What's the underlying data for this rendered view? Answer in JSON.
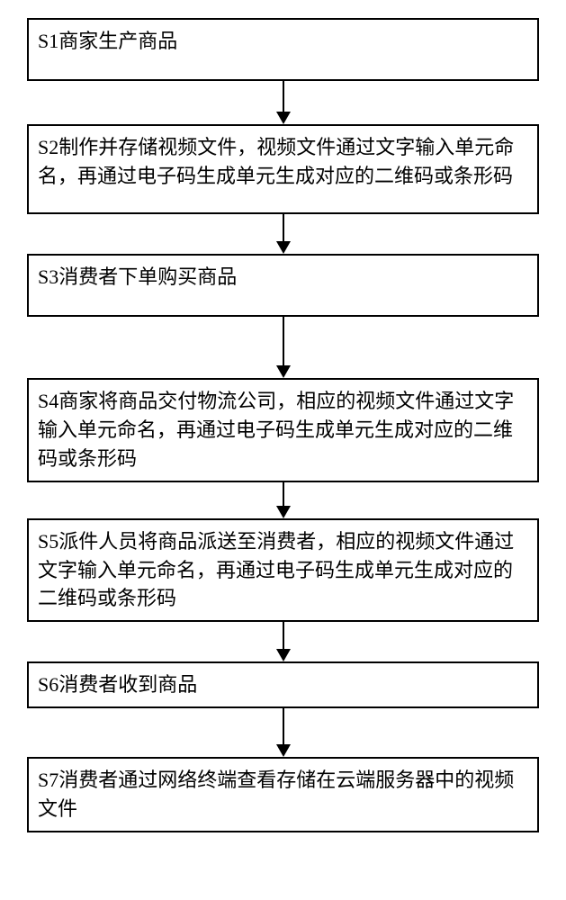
{
  "flowchart": {
    "type": "flowchart",
    "direction": "vertical",
    "box_border_color": "#000000",
    "box_border_width": 2,
    "box_background": "#ffffff",
    "text_color": "#000000",
    "font_size_pt": 16,
    "arrow_color": "#000000",
    "arrow_shaft_width": 2,
    "arrow_head_width": 16,
    "arrow_head_height": 14,
    "nodes": [
      {
        "id": "s1",
        "label": "S1商家生产商品",
        "min_height": 70,
        "arrow_shaft_len": 34
      },
      {
        "id": "s2",
        "label": "S2制作并存储视频文件，视频文件通过文字输入单元命名，再通过电子码生成单元生成对应的二维码或条形码",
        "min_height": 100,
        "arrow_shaft_len": 30
      },
      {
        "id": "s3",
        "label": "S3消费者下单购买商品",
        "min_height": 70,
        "arrow_shaft_len": 54
      },
      {
        "id": "s4",
        "label": "S4商家将商品交付物流公司，相应的视频文件通过文字输入单元命名，再通过电子码生成单元生成对应的二维码或条形码",
        "min_height": 100,
        "arrow_shaft_len": 26
      },
      {
        "id": "s5",
        "label": "S5派件人员将商品派送至消费者，相应的视频文件通过文字输入单元命名，再通过电子码生成单元生成对应的二维码或条形码",
        "min_height": 100,
        "arrow_shaft_len": 30
      },
      {
        "id": "s6",
        "label": "S6消费者收到商品",
        "min_height": 50,
        "arrow_shaft_len": 40
      },
      {
        "id": "s7",
        "label": "S7消费者通过网络终端查看存储在云端服务器中的视频文件",
        "min_height": 70,
        "arrow_shaft_len": 0
      }
    ]
  }
}
